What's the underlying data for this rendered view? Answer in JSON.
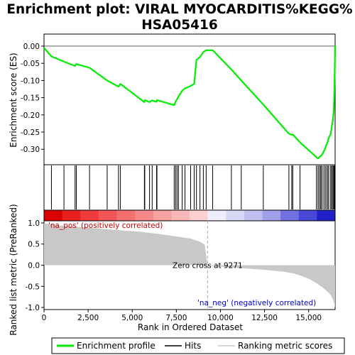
{
  "title_line1": "Enrichment plot: VIRAL MYOCARDITIS%KEGG%",
  "title_line2": "HSA05416",
  "colors": {
    "enrichment_line": "#00ee00",
    "hits": "#000000",
    "metric_fill": "#c8c8c8",
    "pos_label": "#cc0000",
    "neg_label": "#0000cc"
  },
  "chart_data": {
    "type": "line",
    "n_genes": 16500,
    "top_panel": {
      "ylabel": "Enrichment score (ES)",
      "ylim": [
        -0.345,
        0.035
      ],
      "yticks": [
        0.0,
        -0.05,
        -0.1,
        -0.15,
        -0.2,
        -0.25,
        -0.3
      ],
      "ytick_labels": [
        "0.00",
        "-0.05",
        "-0.10",
        "-0.15",
        "-0.20",
        "-0.25",
        "-0.30"
      ],
      "es_profile": {
        "x": [
          0,
          420,
          1130,
          1760,
          1830,
          2580,
          3580,
          4220,
          4330,
          5690,
          5710,
          5980,
          6130,
          6380,
          6400,
          7380,
          7460,
          7540,
          7620,
          7830,
          7990,
          8310,
          8510,
          8640,
          8840,
          9030,
          9190,
          9560,
          10620,
          11180,
          12430,
          13880,
          14040,
          14100,
          14510,
          15530,
          15600,
          15730,
          15820,
          15920,
          15990,
          16080,
          16140,
          16250,
          16300,
          16370,
          16420,
          16440,
          16460,
          16480,
          16500
        ],
        "y": [
          -0.005,
          -0.03,
          -0.045,
          -0.058,
          -0.052,
          -0.063,
          -0.1,
          -0.118,
          -0.11,
          -0.163,
          -0.157,
          -0.163,
          -0.158,
          -0.162,
          -0.157,
          -0.172,
          -0.161,
          -0.154,
          -0.147,
          -0.13,
          -0.123,
          -0.116,
          -0.11,
          -0.04,
          -0.032,
          -0.017,
          -0.012,
          -0.012,
          -0.068,
          -0.1,
          -0.17,
          -0.255,
          -0.258,
          -0.257,
          -0.28,
          -0.327,
          -0.323,
          -0.318,
          -0.31,
          -0.3,
          -0.289,
          -0.278,
          -0.267,
          -0.255,
          -0.238,
          -0.215,
          -0.19,
          -0.16,
          -0.12,
          -0.07,
          0.002
        ]
      }
    },
    "hits": [
      420,
      1130,
      1760,
      1830,
      2580,
      3580,
      4220,
      4330,
      5690,
      5710,
      5980,
      6130,
      6380,
      6400,
      7380,
      7460,
      7540,
      7620,
      7830,
      7990,
      8310,
      8510,
      8640,
      8840,
      9030,
      9190,
      9560,
      10620,
      11180,
      12430,
      13880,
      14040,
      14100,
      14510,
      15440,
      15530,
      15600,
      15680,
      15730,
      15820,
      15920,
      15990,
      16080,
      16140,
      16250,
      16300,
      16370,
      16420,
      16440,
      16460,
      16480
    ],
    "ranked_metric": {
      "ylabel": "Ranked list metric (PreRanked)",
      "ylim": [
        -1.05,
        1.05
      ],
      "yticks": [
        1.0,
        0.5,
        0.0,
        -0.5,
        -1.0
      ],
      "ytick_labels": [
        "1.0",
        "0.5",
        "0.0",
        "-0.5",
        "-1.0"
      ],
      "x": [
        0,
        150,
        400,
        800,
        1500,
        2500,
        3500,
        4500,
        5500,
        6500,
        7500,
        8300,
        8800,
        9100,
        9271,
        9600,
        10500,
        11500,
        12500,
        13500,
        14200,
        14700,
        15100,
        15500,
        15800,
        16000,
        16200,
        16350,
        16450,
        16500
      ],
      "values": [
        1.0,
        0.98,
        0.97,
        0.94,
        0.92,
        0.89,
        0.85,
        0.82,
        0.79,
        0.74,
        0.68,
        0.63,
        0.56,
        0.49,
        0.0,
        -0.02,
        -0.05,
        -0.08,
        -0.11,
        -0.15,
        -0.2,
        -0.27,
        -0.34,
        -0.44,
        -0.53,
        -0.6,
        -0.68,
        -0.78,
        -0.9,
        -1.0
      ]
    },
    "zero_cross_rank": 9271,
    "zero_cross_label": "Zero cross at 9271",
    "pos_label": "'na_pos' (positively correlated)",
    "neg_label": "'na_neg' (negatively correlated)",
    "xlabel": "Rank in Ordered Dataset",
    "xticks": [
      0,
      2500,
      5000,
      7500,
      10000,
      12500,
      15000
    ],
    "xtick_labels": [
      "0",
      "2,500",
      "5,000",
      "7,500",
      "10,000",
      "12,500",
      "15,000"
    ],
    "legend": [
      {
        "label": "Enrichment profile",
        "kind": "line",
        "color": "#00ee00"
      },
      {
        "label": "Hits",
        "kind": "line",
        "color": "#000000"
      },
      {
        "label": "Ranking metric scores",
        "kind": "line",
        "color": "#c8c8c8"
      }
    ],
    "heat_bar_colors": [
      "#dd0000",
      "#e82020",
      "#ee3a3a",
      "#f25555",
      "#f37070",
      "#f58888",
      "#f7a0a0",
      "#f9b8b8",
      "#fbd0d0",
      "#eeeefa",
      "#d8d8f6",
      "#c0c0f0",
      "#a0a0ea",
      "#7070e0",
      "#4848d6",
      "#2020c8"
    ]
  }
}
